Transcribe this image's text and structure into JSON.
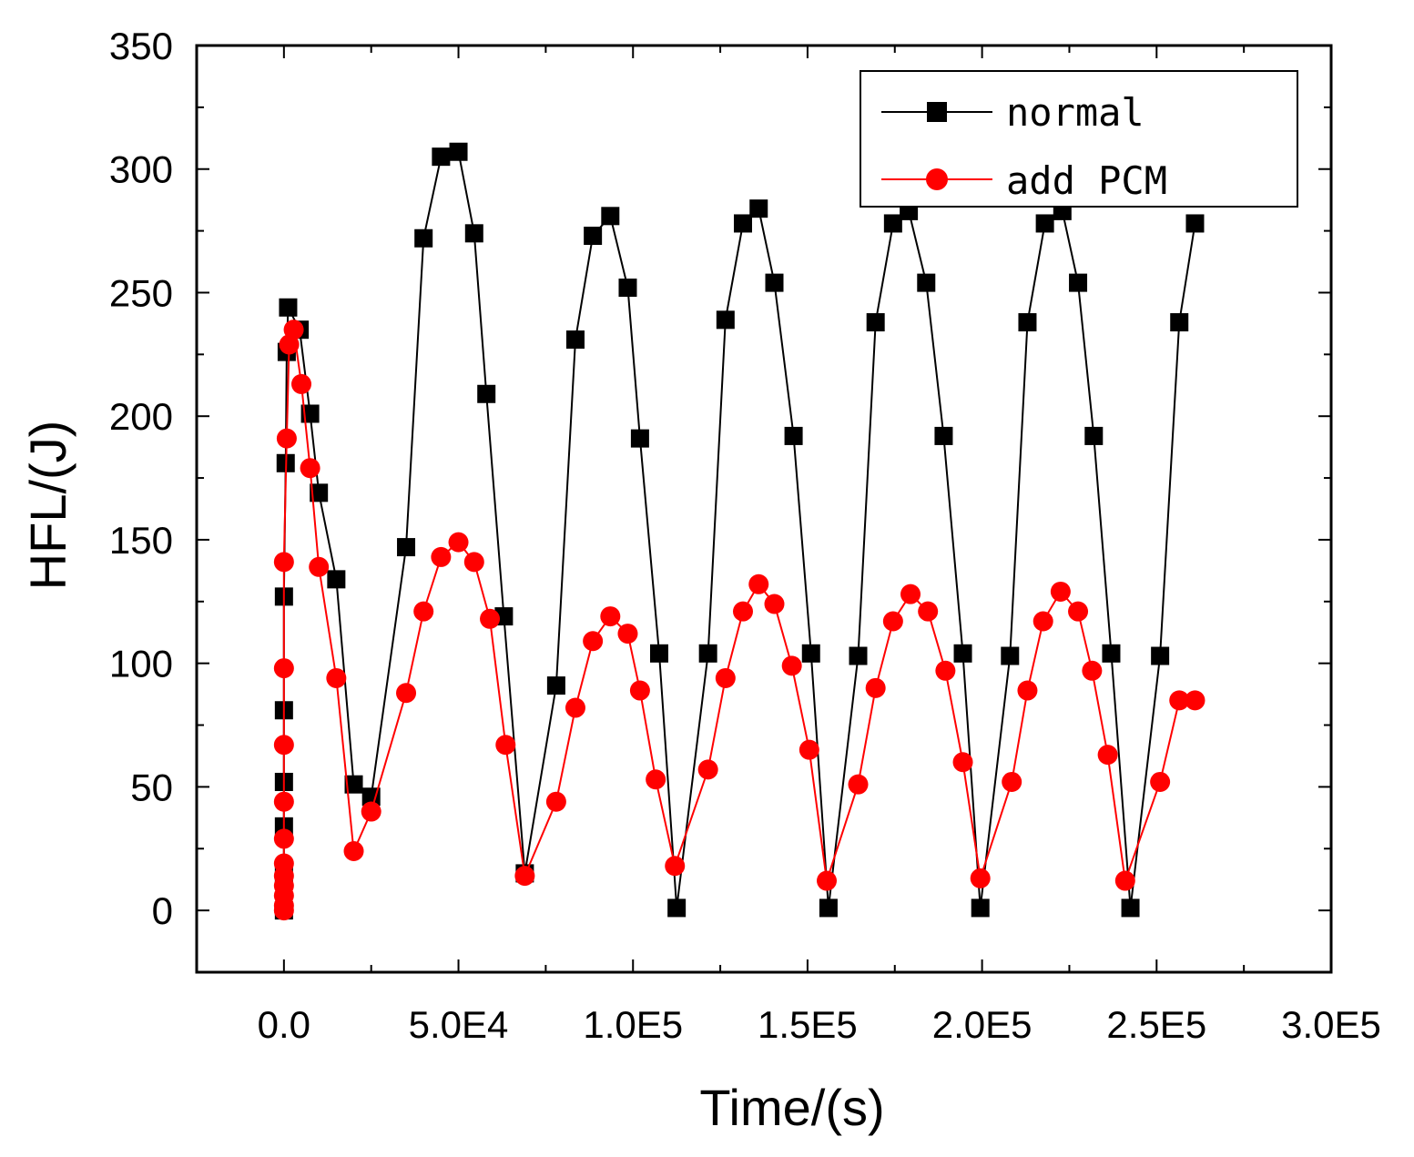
{
  "chart_data": {
    "type": "line",
    "title": "",
    "xlabel": "Time/(s)",
    "ylabel": "HFL/(J)",
    "xlim": [
      -25000,
      300000
    ],
    "ylim": [
      -25,
      350
    ],
    "xticks": [
      0,
      50000,
      100000,
      150000,
      200000,
      250000,
      300000
    ],
    "xtick_labels": [
      "0.0",
      "5.0E4",
      "1.0E5",
      "1.5E5",
      "2.0E5",
      "2.5E5",
      "3.0E5"
    ],
    "yticks": [
      0,
      50,
      100,
      150,
      200,
      250,
      300,
      350
    ],
    "ytick_labels": [
      "0",
      "50",
      "100",
      "150",
      "200",
      "250",
      "300",
      "350"
    ],
    "grid": false,
    "legend_position": "top-right",
    "series": [
      {
        "name": "normal",
        "color": "#000000",
        "marker": "square",
        "x": [
          0,
          0,
          0,
          0,
          0,
          0,
          500,
          800,
          1200,
          4500,
          7500,
          10000,
          15000,
          20000,
          25000,
          35000,
          40000,
          45000,
          50000,
          54500,
          58000,
          63000,
          69000,
          78000,
          83500,
          88500,
          93500,
          98500,
          102000,
          107500,
          112500,
          121500,
          126500,
          131500,
          136000,
          140500,
          146000,
          151000,
          156000,
          164500,
          169500,
          174500,
          179000,
          184000,
          189000,
          194500,
          199500,
          208000,
          213000,
          218000,
          223000,
          227500,
          232000,
          237000,
          242500,
          251000,
          256500,
          261000
        ],
        "y": [
          0,
          15,
          34,
          52,
          81,
          127,
          181,
          226,
          244,
          235,
          201,
          169,
          134,
          51,
          46,
          147,
          272,
          305,
          307,
          274,
          209,
          119,
          15,
          91,
          231,
          273,
          281,
          252,
          191,
          104,
          1,
          104,
          239,
          278,
          284,
          254,
          192,
          104,
          1,
          103,
          238,
          278,
          283,
          254,
          192,
          104,
          1,
          103,
          238,
          278,
          283,
          254,
          192,
          104,
          1,
          103,
          238,
          278
        ]
      },
      {
        "name": "add PCM",
        "color": "#ff0000",
        "marker": "circle",
        "x": [
          0,
          0,
          0,
          0,
          0,
          0,
          0,
          0,
          0,
          0,
          0,
          800,
          1500,
          2800,
          5000,
          7500,
          10000,
          15000,
          20000,
          25000,
          35000,
          40000,
          45000,
          50000,
          54500,
          59000,
          63500,
          69000,
          78000,
          83500,
          88500,
          93500,
          98500,
          102000,
          106500,
          112000,
          121500,
          126500,
          131500,
          136000,
          140500,
          145500,
          150500,
          155500,
          164500,
          169500,
          174500,
          179500,
          184500,
          189500,
          194500,
          199500,
          208500,
          213000,
          217500,
          222500,
          227500,
          231500,
          236000,
          241000,
          251000,
          256500,
          261000
        ],
        "y": [
          0,
          2,
          6,
          10,
          14,
          19,
          29,
          44,
          67,
          98,
          141,
          191,
          229,
          235,
          213,
          179,
          139,
          94,
          24,
          40,
          88,
          121,
          143,
          149,
          141,
          118,
          67,
          14,
          44,
          82,
          109,
          119,
          112,
          89,
          53,
          18,
          57,
          94,
          121,
          132,
          124,
          99,
          65,
          12,
          51,
          90,
          117,
          128,
          121,
          97,
          60,
          13,
          52,
          89,
          117,
          129,
          121,
          97,
          63,
          12,
          52,
          85,
          85
        ]
      }
    ]
  }
}
